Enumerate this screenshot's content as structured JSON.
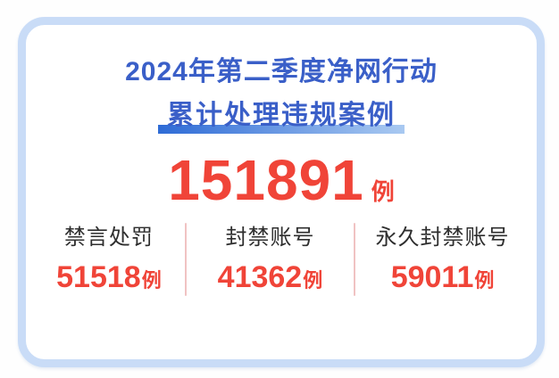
{
  "card": {
    "title_line1": "2024年第二季度净网行动",
    "title_line2": "累计处理违规案例",
    "total": {
      "value": "151891",
      "unit": "例"
    },
    "stats": [
      {
        "label": "禁言处罚",
        "value": "51518",
        "unit": "例"
      },
      {
        "label": "封禁账号",
        "value": "41362",
        "unit": "例"
      },
      {
        "label": "永久封禁账号",
        "value": "59011",
        "unit": "例"
      }
    ],
    "colors": {
      "title_blue": "#3a5fc8",
      "accent_red": "#f04438",
      "border_blue": "#c9dcf7",
      "underline_start": "#2e6bd6",
      "underline_end": "#a9c9f1",
      "label_dark": "#2e2e2e",
      "divider_pink": "#f0c3c3",
      "page_bg": "#fefefe"
    }
  },
  "chart_data": {
    "type": "table",
    "title": "2024年第二季度净网行动 累计处理违规案例",
    "total": 151891,
    "categories": [
      "禁言处罚",
      "封禁账号",
      "永久封禁账号"
    ],
    "values": [
      51518,
      41362,
      59011
    ],
    "unit": "例"
  }
}
